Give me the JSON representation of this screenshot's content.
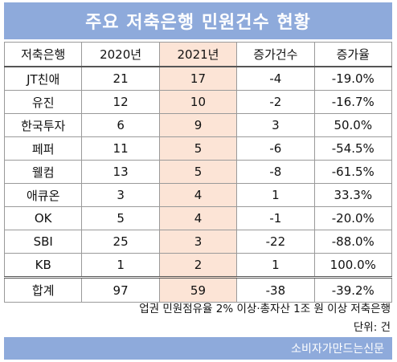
{
  "title": "주요 저축은행 민원건수 현황",
  "table": {
    "headers": [
      "저축은행",
      "2020년",
      "2021년",
      "증가건수",
      "증가율"
    ],
    "rows": [
      {
        "bank": "JT친애",
        "y2020": "21",
        "y2021": "17",
        "increase": "-4",
        "rate": "-19.0%"
      },
      {
        "bank": "유진",
        "y2020": "12",
        "y2021": "10",
        "increase": "-2",
        "rate": "-16.7%"
      },
      {
        "bank": "한국투자",
        "y2020": "6",
        "y2021": "9",
        "increase": "3",
        "rate": "50.0%"
      },
      {
        "bank": "페퍼",
        "y2020": "11",
        "y2021": "5",
        "increase": "-6",
        "rate": "-54.5%"
      },
      {
        "bank": "웰컴",
        "y2020": "13",
        "y2021": "5",
        "increase": "-8",
        "rate": "-61.5%"
      },
      {
        "bank": "애큐온",
        "y2020": "3",
        "y2021": "4",
        "increase": "1",
        "rate": "33.3%"
      },
      {
        "bank": "OK",
        "y2020": "5",
        "y2021": "4",
        "increase": "-1",
        "rate": "-20.0%"
      },
      {
        "bank": "SBI",
        "y2020": "25",
        "y2021": "3",
        "increase": "-22",
        "rate": "-88.0%"
      },
      {
        "bank": "KB",
        "y2020": "1",
        "y2021": "2",
        "increase": "1",
        "rate": "100.0%"
      }
    ],
    "total": {
      "bank": "합계",
      "y2020": "97",
      "y2021": "59",
      "increase": "-38",
      "rate": "-39.2%"
    }
  },
  "note": "업권 민원점유율 2% 이상·총자산 1조 원 이상 저축은행",
  "unit": "단위: 건",
  "source": "소비자가만드는신문",
  "colors": {
    "header_bar": "#8eaadb",
    "highlight_column": "#fce4d6"
  }
}
